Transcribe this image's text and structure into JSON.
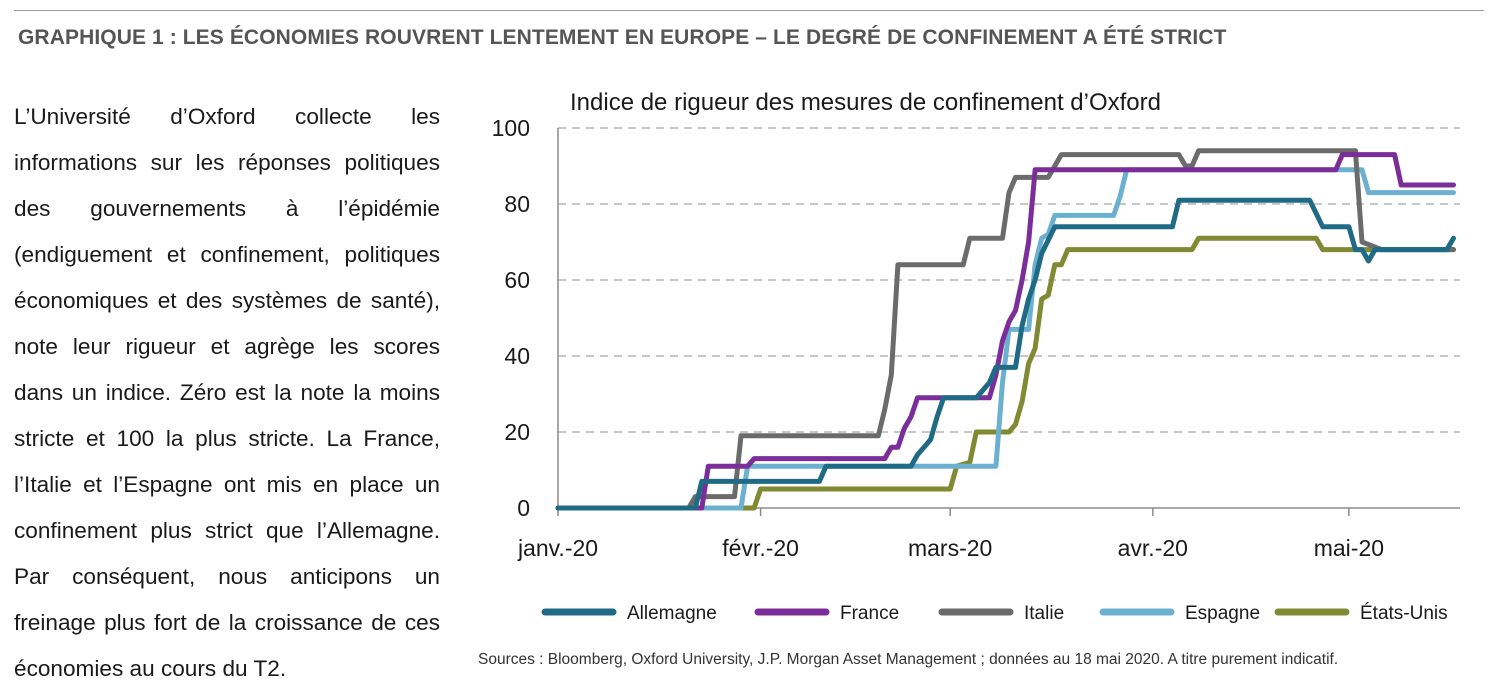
{
  "header": {
    "title": "GRAPHIQUE 1 : LES ÉCONOMIES ROUVRENT LENTEMENT EN EUROPE – LE DEGRÉ DE CONFINEMENT A ÉTÉ STRICT"
  },
  "description": "L’Université d’Oxford collecte les informations sur les réponses politiques des gouvernements à l’épidémie (endiguement et confinement, politiques économiques et des systèmes de santé), note leur rigueur et agrège les scores dans un indice. Zéro est la note la moins stricte et 100 la plus stricte. La France, l’Italie et l’Espagne ont mis en place un confinement plus strict que l’Allemagne. Par conséquent, nous anticipons un freinage plus fort de la croissance de ces économies au cours du T2.",
  "source": "Sources : Bloomberg, Oxford University, J.P. Morgan Asset Management ; données au 18 mai  2020. A titre purement indicatif.",
  "chart_data": {
    "type": "line",
    "title": "Indice de rigueur des mesures de confinement d’Oxford",
    "xlabel": "",
    "ylabel": "",
    "x_unit": "day of 2020 (1 = 1 janv.)",
    "xlim": [
      1,
      139
    ],
    "ylim": [
      0,
      100
    ],
    "y_ticks": [
      0,
      20,
      40,
      60,
      80,
      100
    ],
    "x_ticks": [
      {
        "day": 1,
        "label": "janv.-20"
      },
      {
        "day": 32,
        "label": "févr.-20"
      },
      {
        "day": 61,
        "label": "mars-20"
      },
      {
        "day": 92,
        "label": "avr.-20"
      },
      {
        "day": 122,
        "label": "mai-20"
      }
    ],
    "grid": "horizontal dashed",
    "legend_position": "bottom",
    "series": [
      {
        "name": "Allemagne",
        "color": "#1f6b86",
        "points": [
          [
            1,
            0
          ],
          [
            22,
            0
          ],
          [
            23,
            7
          ],
          [
            41,
            7
          ],
          [
            42,
            11
          ],
          [
            55,
            11
          ],
          [
            56,
            14
          ],
          [
            58,
            18
          ],
          [
            59,
            24
          ],
          [
            60,
            29
          ],
          [
            65,
            29
          ],
          [
            66,
            31
          ],
          [
            67,
            33
          ],
          [
            68,
            37
          ],
          [
            71,
            37
          ],
          [
            72,
            48
          ],
          [
            73,
            55
          ],
          [
            74,
            60
          ],
          [
            75,
            67
          ],
          [
            77,
            74
          ],
          [
            86,
            74
          ],
          [
            88,
            74
          ],
          [
            95,
            74
          ],
          [
            96,
            81
          ],
          [
            116,
            81
          ],
          [
            118,
            74
          ],
          [
            122,
            74
          ],
          [
            123,
            68
          ],
          [
            124,
            68
          ],
          [
            125,
            65
          ],
          [
            126,
            68
          ],
          [
            137,
            68
          ],
          [
            138,
            71
          ]
        ]
      },
      {
        "name": "France",
        "color": "#7b2d9a",
        "points": [
          [
            1,
            0
          ],
          [
            23,
            0
          ],
          [
            24,
            11
          ],
          [
            30,
            11
          ],
          [
            31,
            13
          ],
          [
            51,
            13
          ],
          [
            52,
            16
          ],
          [
            53,
            16
          ],
          [
            54,
            21
          ],
          [
            55,
            24
          ],
          [
            56,
            29
          ],
          [
            66,
            29
          ],
          [
            67,
            29
          ],
          [
            68,
            35
          ],
          [
            69,
            44
          ],
          [
            70,
            49
          ],
          [
            71,
            52
          ],
          [
            72,
            60
          ],
          [
            73,
            70
          ],
          [
            74,
            89
          ],
          [
            77,
            89
          ],
          [
            120,
            89
          ],
          [
            121,
            93
          ],
          [
            129,
            93
          ],
          [
            130,
            85
          ],
          [
            138,
            85
          ]
        ]
      },
      {
        "name": "Italie",
        "color": "#6b6b6b",
        "points": [
          [
            1,
            0
          ],
          [
            21,
            0
          ],
          [
            22,
            3
          ],
          [
            28,
            3
          ],
          [
            29,
            19
          ],
          [
            50,
            19
          ],
          [
            51,
            26
          ],
          [
            52,
            35
          ],
          [
            53,
            64
          ],
          [
            63,
            64
          ],
          [
            64,
            71
          ],
          [
            69,
            71
          ],
          [
            70,
            83
          ],
          [
            71,
            87
          ],
          [
            76,
            87
          ],
          [
            77,
            90
          ],
          [
            78,
            93
          ],
          [
            94,
            93
          ],
          [
            96,
            93
          ],
          [
            97,
            90
          ],
          [
            98,
            90
          ],
          [
            99,
            94
          ],
          [
            123,
            94
          ],
          [
            124,
            70
          ],
          [
            127,
            68
          ],
          [
            138,
            68
          ]
        ]
      },
      {
        "name": "Espagne",
        "color": "#6cb0cf",
        "points": [
          [
            1,
            0
          ],
          [
            29,
            0
          ],
          [
            30,
            11
          ],
          [
            68,
            11
          ],
          [
            69,
            33
          ],
          [
            70,
            47
          ],
          [
            73,
            47
          ],
          [
            74,
            64
          ],
          [
            75,
            71
          ],
          [
            76,
            72
          ],
          [
            77,
            77
          ],
          [
            86,
            77
          ],
          [
            87,
            82
          ],
          [
            88,
            89
          ],
          [
            124,
            89
          ],
          [
            125,
            83
          ],
          [
            138,
            83
          ]
        ]
      },
      {
        "name": "États-Unis",
        "color": "#7f8a32",
        "points": [
          [
            1,
            0
          ],
          [
            31,
            0
          ],
          [
            32,
            5
          ],
          [
            61,
            5
          ],
          [
            62,
            11
          ],
          [
            64,
            12
          ],
          [
            65,
            20
          ],
          [
            70,
            20
          ],
          [
            71,
            22
          ],
          [
            72,
            28
          ],
          [
            73,
            38
          ],
          [
            74,
            42
          ],
          [
            75,
            55
          ],
          [
            76,
            56
          ],
          [
            77,
            64
          ],
          [
            78,
            64
          ],
          [
            79,
            68
          ],
          [
            98,
            68
          ],
          [
            99,
            71
          ],
          [
            117,
            71
          ],
          [
            118,
            68
          ],
          [
            138,
            68
          ]
        ]
      }
    ]
  }
}
